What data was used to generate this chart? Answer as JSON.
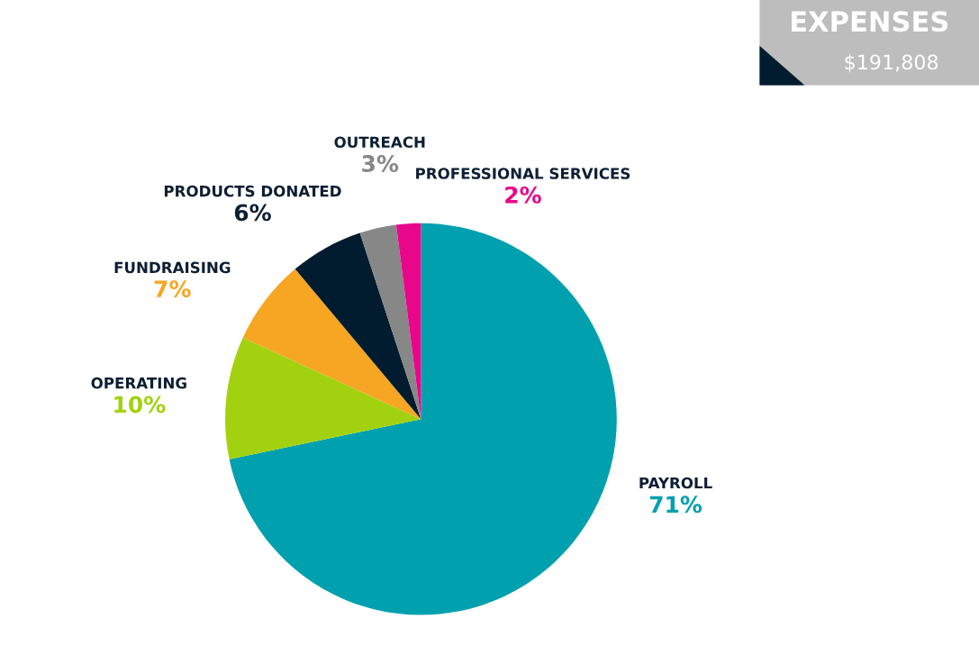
{
  "chart_data": {
    "type": "pie",
    "title": "EXPENSES",
    "subtitle": "$191,808",
    "categories": [
      "PAYROLL",
      "OPERATING",
      "FUNDRAISING",
      "PRODUCTS DONATED",
      "OUTREACH",
      "PROFESSIONAL SERVICES"
    ],
    "values": [
      71,
      10,
      7,
      6,
      3,
      2
    ],
    "colors": [
      "#00a0af",
      "#a2d20f",
      "#f6a623",
      "#001c2e",
      "#878787",
      "#e8078a"
    ],
    "value_labels": [
      "71%",
      "10%",
      "7%",
      "6%",
      "3%",
      "2%"
    ],
    "legend": false
  }
}
